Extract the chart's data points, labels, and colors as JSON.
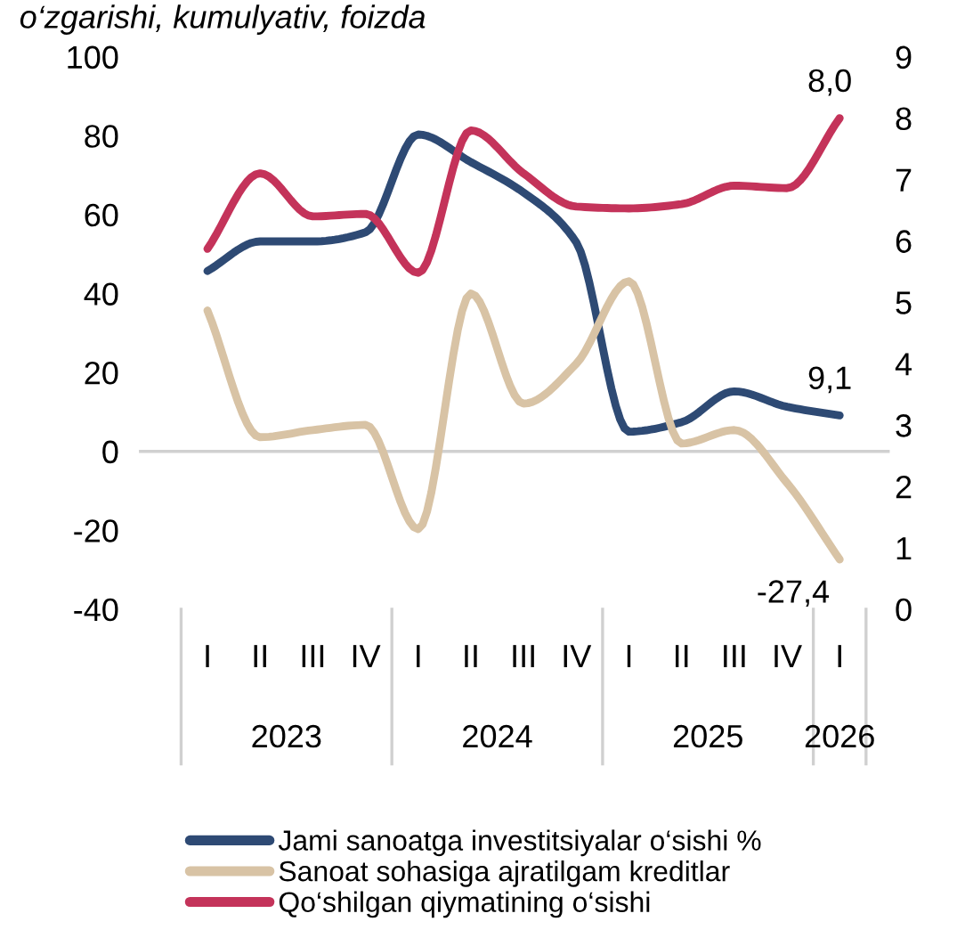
{
  "chart_data": {
    "type": "line",
    "title": "o‘zgarishi, kumulyativ, foizda",
    "categories": [
      "I",
      "II",
      "III",
      "IV",
      "I",
      "II",
      "III",
      "IV",
      "I",
      "II",
      "III",
      "IV",
      "I"
    ],
    "annotations": [
      "2023",
      "2024",
      "2025",
      "2026"
    ],
    "series": [
      {
        "name": "Jami sanoatga investitsiyalar o‘sishi %",
        "color": "#2e4a74",
        "values": [
          45.7,
          53.2,
          53.2,
          55.5,
          80.3,
          73.3,
          65.6,
          53,
          5,
          7.4,
          15.2,
          11.3,
          9.1
        ],
        "value_labels": [
          null,
          null,
          null,
          null,
          null,
          null,
          null,
          null,
          null,
          null,
          null,
          null,
          "9,1"
        ]
      },
      {
        "name": "Sanoat sohasiga ajratilgam kreditlar",
        "color": "#d8c3a5",
        "values": [
          35.7,
          3.6,
          5.4,
          6.7,
          -19.7,
          40,
          12.1,
          22.2,
          43.1,
          2,
          5.4,
          -8,
          -27.4
        ],
        "value_labels": [
          null,
          null,
          null,
          null,
          null,
          null,
          null,
          null,
          null,
          null,
          null,
          null,
          "-27,4"
        ]
      },
      {
        "name": "Qo‘shilgan qiymatining o‘sishi",
        "color": "#c4335a",
        "axis": "y2",
        "values": [
          5.87,
          7.1,
          6.4,
          6.44,
          5.48,
          7.8,
          7.1,
          6.56,
          6.53,
          6.6,
          6.9,
          6.86,
          8.0
        ],
        "value_labels": [
          null,
          null,
          null,
          null,
          null,
          null,
          null,
          null,
          null,
          null,
          null,
          null,
          "8,0"
        ]
      }
    ],
    "ylim": [
      -40,
      100
    ],
    "yticks": [
      -40,
      -20,
      0,
      20,
      40,
      60,
      80,
      100
    ],
    "y2lim": [
      0,
      9
    ],
    "y2ticks": [
      0,
      1,
      2,
      3,
      4,
      5,
      6,
      7,
      8,
      9
    ],
    "ref_lines": [
      {
        "axis": "y",
        "value": 0,
        "color": "#d0d0d0"
      }
    ],
    "grid": false,
    "legend": "bottom",
    "marker": "none",
    "line_style": "solid"
  }
}
